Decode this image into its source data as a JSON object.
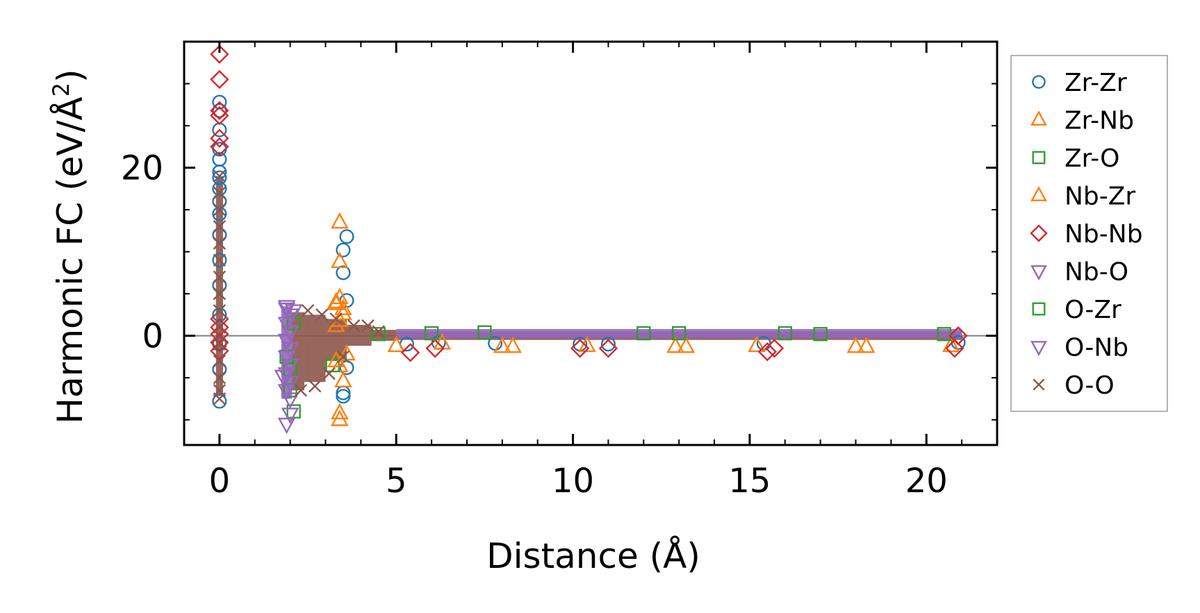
{
  "chart_data": {
    "type": "scatter",
    "xlabel": "Distance (Å)",
    "ylabel_main": "Harmonic FC (eV/Å",
    "ylabel_sup": "2",
    "ylabel_close": ")",
    "xlim": [
      -1,
      22
    ],
    "ylim": [
      -13,
      35
    ],
    "xticks": [
      0,
      5,
      10,
      15,
      20
    ],
    "xtick_labels": [
      "0",
      "5",
      "10",
      "15",
      "20"
    ],
    "yticks": [
      0,
      20
    ],
    "ytick_labels": [
      "0",
      "20"
    ],
    "x_minor_step": 1,
    "y_minor_step": 5,
    "zero_line": true,
    "legend_placement": "outside-right",
    "series": [
      {
        "name": "Zr-Zr",
        "marker": "circle",
        "color": "#1f77b4",
        "points": [
          [
            0,
            27.8
          ],
          [
            0,
            26.8
          ],
          [
            0,
            24.5
          ],
          [
            0,
            22.2
          ],
          [
            0,
            21.0
          ],
          [
            0,
            19.5
          ],
          [
            0,
            18.8
          ],
          [
            0,
            17.5
          ],
          [
            0,
            16.0
          ],
          [
            0,
            14.5
          ],
          [
            0,
            12.0
          ],
          [
            0,
            9.0
          ],
          [
            0,
            6.0
          ],
          [
            0,
            2.5
          ],
          [
            0,
            -1.0
          ],
          [
            0,
            -4.0
          ],
          [
            0,
            -7.8
          ],
          [
            3.6,
            11.8
          ],
          [
            3.5,
            10.2
          ],
          [
            3.5,
            7.5
          ],
          [
            3.6,
            4.2
          ],
          [
            3.5,
            -6.8
          ],
          [
            3.5,
            -7.2
          ],
          [
            3.6,
            -3.8
          ],
          [
            5.3,
            -1.0
          ],
          [
            6.2,
            -0.8
          ],
          [
            7.8,
            -0.9
          ],
          [
            10.2,
            -1.0
          ],
          [
            11.0,
            -1.0
          ],
          [
            15.4,
            -0.9
          ],
          [
            20.9,
            -0.8
          ]
        ]
      },
      {
        "name": "Zr-Nb",
        "marker": "triangle-up",
        "color": "#ff7f0e",
        "points": [
          [
            3.4,
            13.5
          ],
          [
            3.4,
            8.8
          ],
          [
            3.4,
            4.5
          ],
          [
            3.3,
            3.8
          ],
          [
            3.5,
            2.6
          ],
          [
            3.4,
            1.8
          ],
          [
            3.4,
            -3.6
          ],
          [
            3.5,
            -5.4
          ],
          [
            3.4,
            -9.2
          ],
          [
            3.4,
            -10.0
          ],
          [
            5.0,
            -1.2
          ],
          [
            6.3,
            -0.9
          ],
          [
            8.0,
            -1.3
          ],
          [
            8.3,
            -1.3
          ],
          [
            10.4,
            -1.2
          ],
          [
            12.9,
            -1.3
          ],
          [
            13.2,
            -1.3
          ],
          [
            15.2,
            -1.2
          ],
          [
            18.0,
            -1.3
          ],
          [
            18.3,
            -1.3
          ],
          [
            20.7,
            -1.2
          ]
        ]
      },
      {
        "name": "Zr-O",
        "marker": "square",
        "color": "#2ca02c",
        "points": [
          [
            2.0,
            -6.5
          ],
          [
            2.1,
            -9.0
          ],
          [
            2.0,
            -4.0
          ],
          [
            3.2,
            -3.5
          ],
          [
            4.5,
            0.2
          ],
          [
            7.5,
            0.4
          ],
          [
            12.0,
            0.3
          ],
          [
            16.0,
            0.3
          ],
          [
            20.5,
            0.2
          ]
        ]
      },
      {
        "name": "Nb-Zr",
        "marker": "triangle-up",
        "color": "#ff7f0e",
        "points": [
          [
            3.3,
            4.0
          ],
          [
            3.5,
            3.2
          ],
          [
            3.3,
            1.2
          ],
          [
            3.6,
            -2.2
          ],
          [
            3.3,
            -3.0
          ]
        ]
      },
      {
        "name": "Nb-Nb",
        "marker": "diamond",
        "color": "#d62728",
        "points": [
          [
            0,
            33.5
          ],
          [
            0,
            30.5
          ],
          [
            0,
            26.8
          ],
          [
            0,
            26.2
          ],
          [
            0,
            23.5
          ],
          [
            0,
            22.5
          ],
          [
            0,
            2.0
          ],
          [
            0,
            1.0
          ],
          [
            0,
            0.2
          ],
          [
            0,
            -0.8
          ],
          [
            0,
            -1.8
          ],
          [
            5.4,
            -2.0
          ],
          [
            6.1,
            -1.5
          ],
          [
            10.2,
            -1.5
          ],
          [
            11.0,
            -1.5
          ],
          [
            15.5,
            -1.9
          ],
          [
            15.7,
            -1.5
          ],
          [
            20.8,
            -1.5
          ],
          [
            20.9,
            0.0
          ]
        ]
      },
      {
        "name": "Nb-O",
        "marker": "triangle-down",
        "color": "#9467bd",
        "points": [
          [
            1.9,
            -10.5
          ],
          [
            2.0,
            -9.3
          ],
          [
            1.9,
            3.5
          ],
          [
            2.1,
            3.0
          ],
          [
            1.8,
            -4.8
          ]
        ]
      },
      {
        "name": "O-Zr",
        "marker": "square",
        "color": "#2ca02c",
        "points": [
          [
            1.9,
            -2.5
          ],
          [
            2.1,
            1.5
          ],
          [
            6.0,
            0.3
          ],
          [
            13.0,
            0.3
          ],
          [
            17.0,
            0.2
          ]
        ]
      },
      {
        "name": "O-Nb",
        "marker": "triangle-down",
        "color": "#9467bd",
        "points": [
          [
            1.9,
            3.2
          ],
          [
            2.0,
            2.5
          ],
          [
            1.9,
            1.5
          ],
          [
            2.0,
            0.5
          ],
          [
            1.9,
            -0.5
          ],
          [
            2.0,
            -1.5
          ],
          [
            1.9,
            -2.5
          ],
          [
            2.0,
            -3.5
          ],
          [
            1.9,
            -4.5
          ],
          [
            2.0,
            -5.5
          ],
          [
            1.9,
            -6.5
          ],
          [
            2.0,
            -7.5
          ]
        ]
      },
      {
        "name": "O-O",
        "marker": "cross",
        "color": "#8c564b",
        "points": [
          [
            0,
            19.0
          ],
          [
            0,
            17.0
          ],
          [
            0,
            15.0
          ],
          [
            0,
            13.0
          ],
          [
            0,
            11.0
          ],
          [
            0,
            9.0
          ],
          [
            0,
            7.0
          ],
          [
            0,
            5.0
          ],
          [
            0,
            3.0
          ],
          [
            0,
            1.0
          ],
          [
            0,
            -1.0
          ],
          [
            0,
            -3.0
          ],
          [
            0,
            -5.0
          ],
          [
            0,
            -6.5
          ],
          [
            0,
            -7.5
          ],
          [
            2.3,
            -6.5
          ],
          [
            2.5,
            3.0
          ],
          [
            2.7,
            -6.0
          ],
          [
            2.9,
            2.5
          ],
          [
            3.1,
            -4.5
          ],
          [
            3.3,
            2.0
          ],
          [
            3.5,
            -2.5
          ],
          [
            3.8,
            1.2
          ],
          [
            4.2,
            1.2
          ],
          [
            4.5,
            0.5
          ]
        ]
      }
    ],
    "bands": [
      {
        "series": "O-Nb",
        "x": [
          1.75,
          2.05
        ],
        "y": [
          -7.5,
          3.5
        ]
      },
      {
        "series": "O-O",
        "x": [
          2.05,
          2.4
        ],
        "y": [
          -6.5,
          2.8
        ]
      },
      {
        "series": "O-O",
        "x": [
          2.4,
          3.0
        ],
        "y": [
          -5.5,
          2.5
        ]
      },
      {
        "series": "O-O",
        "x": [
          3.0,
          3.6
        ],
        "y": [
          -3.0,
          2.0
        ]
      },
      {
        "series": "O-O",
        "x": [
          3.6,
          4.3
        ],
        "y": [
          -1.2,
          1.3
        ]
      },
      {
        "series": "O-O",
        "x": [
          4.3,
          5.0
        ],
        "y": [
          -0.6,
          0.7
        ]
      },
      {
        "series": "O-O",
        "x": [
          5.0,
          21.0
        ],
        "y": [
          -0.5,
          0.5
        ]
      },
      {
        "series": "O-Nb",
        "x": [
          5.0,
          21.0
        ],
        "y": [
          -0.3,
          0.8
        ]
      },
      {
        "series": "O-O",
        "x": [
          -0.1,
          0.1
        ],
        "y": [
          -7.0,
          19.0
        ]
      }
    ]
  }
}
